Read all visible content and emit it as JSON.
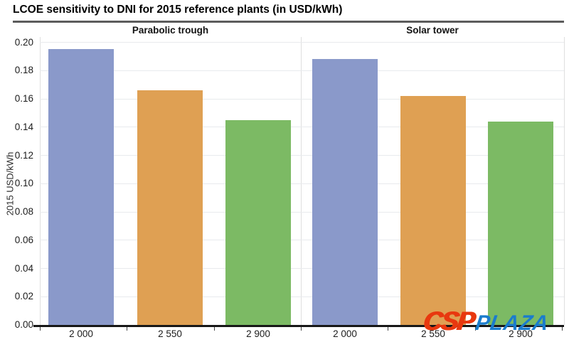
{
  "title": "LCOE sensitivity to DNI for 2015 reference plants (in USD/kWh)",
  "watermark": {
    "csp": "CSP",
    "plaza": "PLAZA"
  },
  "chart_data": {
    "type": "bar",
    "title": "LCOE sensitivity to DNI for 2015 reference plants (in USD/kWh)",
    "xlabel": "",
    "ylabel": "2015 USD/kWh",
    "ylim": [
      0,
      0.2
    ],
    "ytick_step": 0.02,
    "ytick_labels": [
      "0.00",
      "0.02",
      "0.04",
      "0.06",
      "0.08",
      "0.10",
      "0.12",
      "0.14",
      "0.16",
      "0.18",
      "0.20"
    ],
    "grid": true,
    "legend": "none",
    "categories": [
      "2 000",
      "2 550",
      "2 900"
    ],
    "groups": [
      {
        "label": "Parabolic trough",
        "values": [
          0.195,
          0.166,
          0.145
        ]
      },
      {
        "label": "Solar tower",
        "values": [
          0.188,
          0.162,
          0.144
        ]
      }
    ],
    "bar_colors": [
      "#8a99ca",
      "#dfa053",
      "#7cba64"
    ]
  }
}
